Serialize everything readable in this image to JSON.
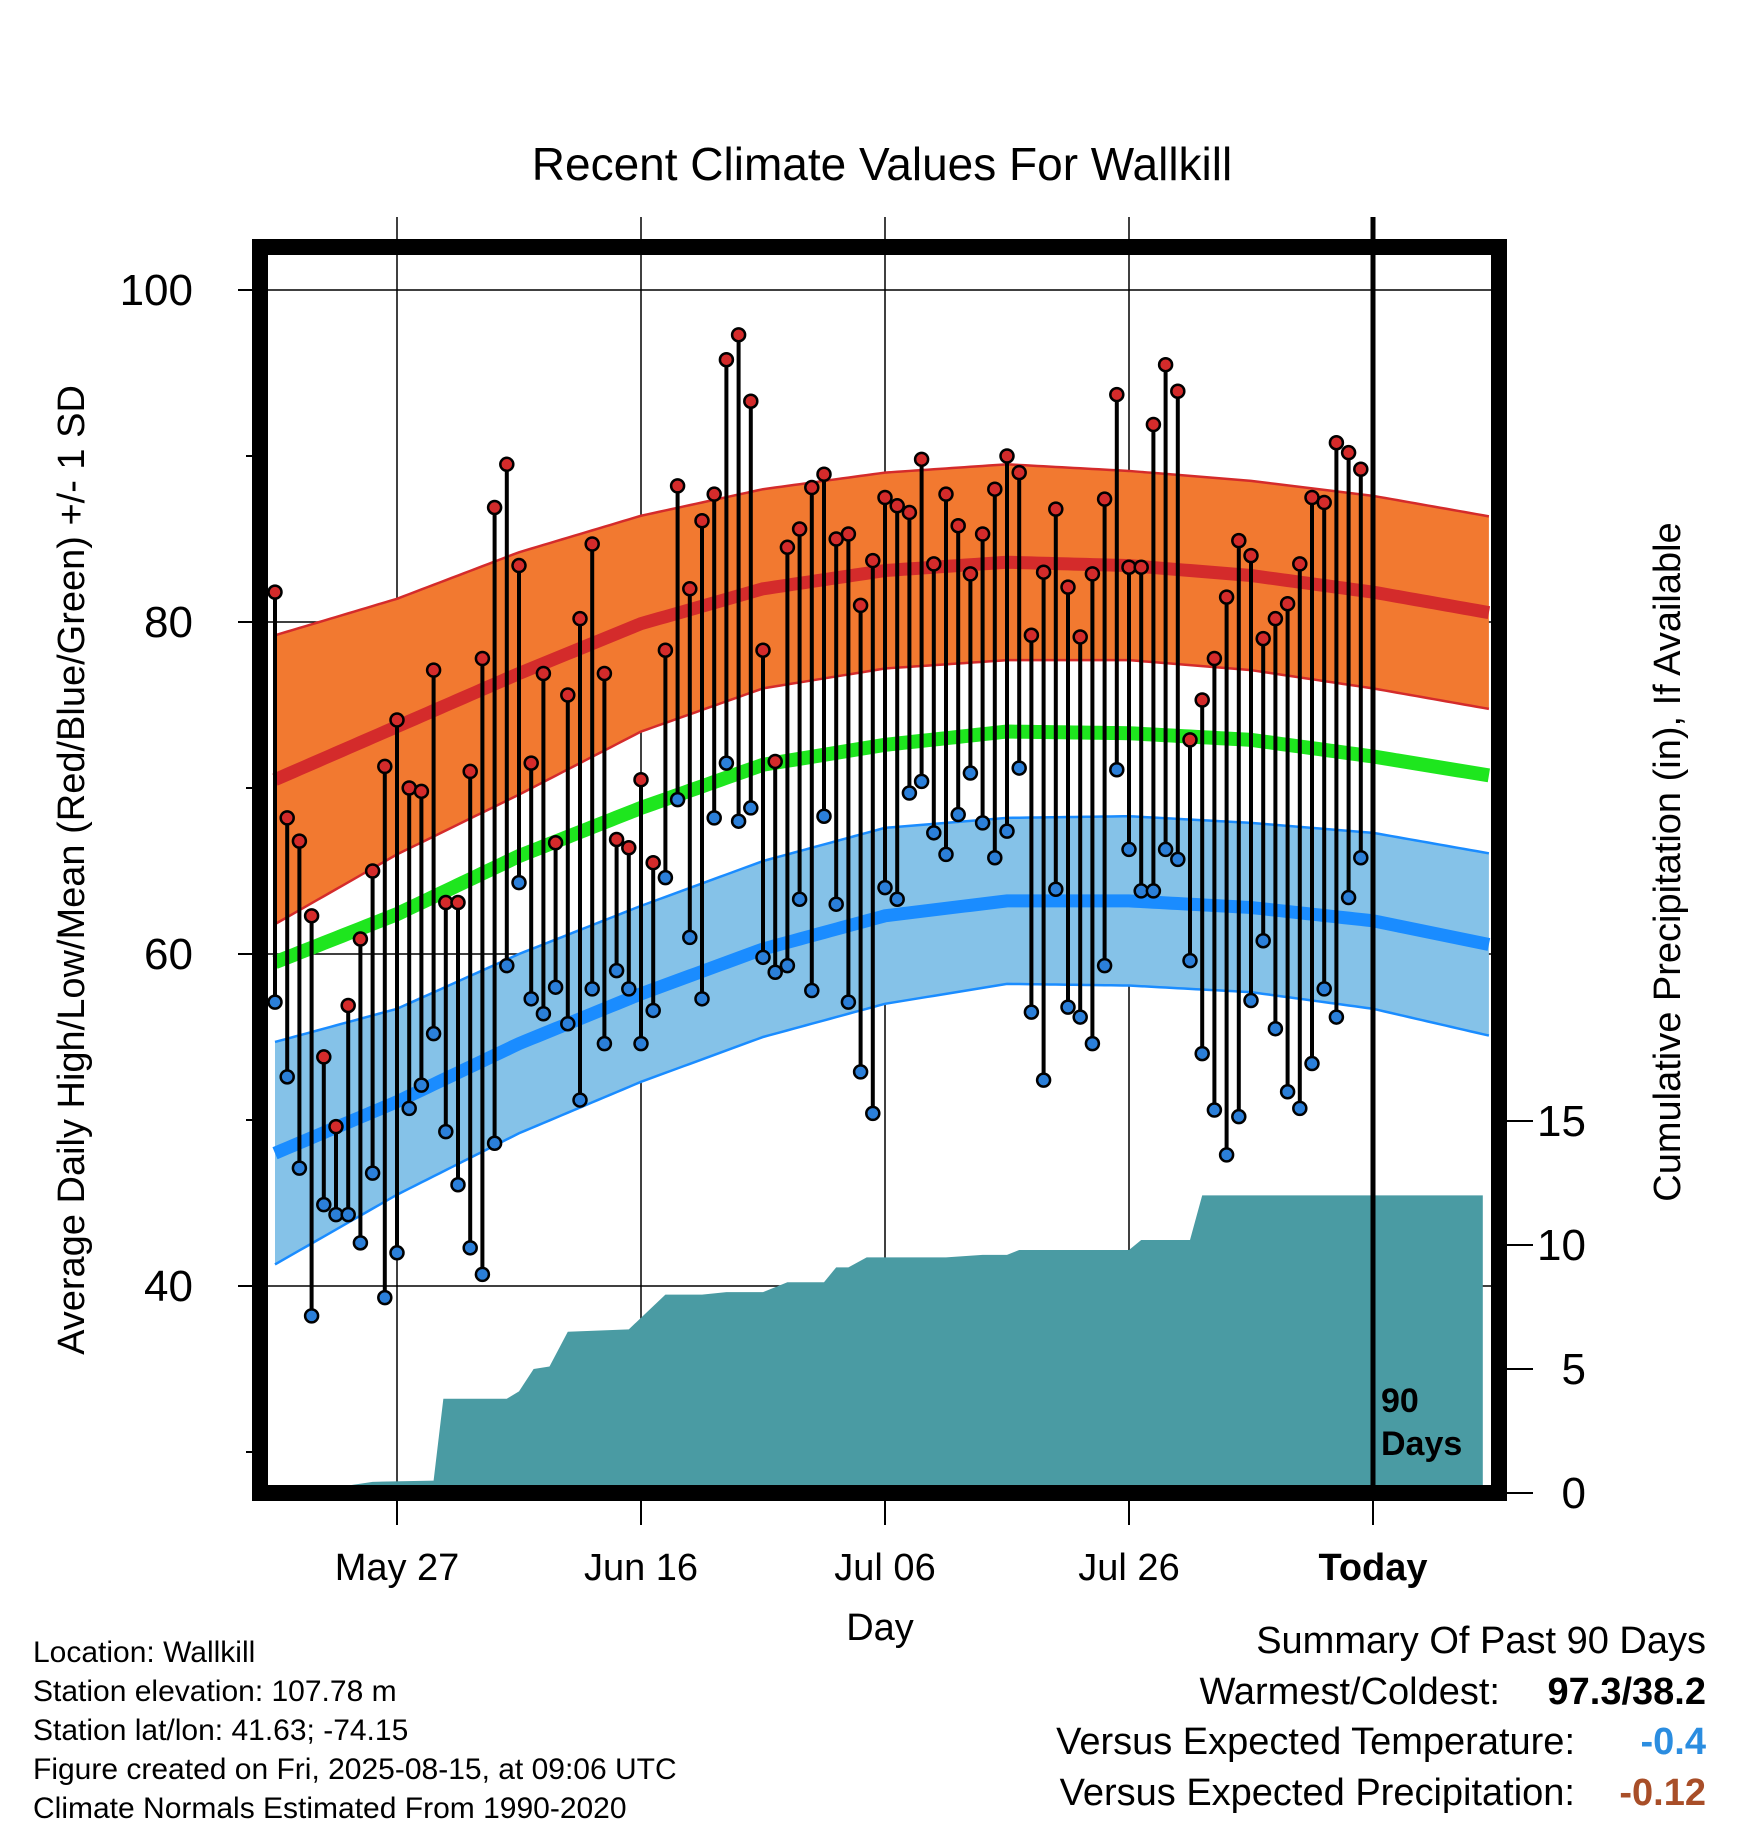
{
  "chart_data": {
    "type": "line",
    "title": "Recent Climate Values For Wallkill",
    "xlabel": "Day",
    "ylabel_left": "Average Daily High/Low/Mean (Red/Blue/Green) +/- 1 SD",
    "ylabel_right": "Cumulative Precipitation (in), If Available",
    "x_range": [
      -11,
      89
    ],
    "ylim_left": [
      29,
      104
    ],
    "ylim_right": [
      0,
      15
    ],
    "y_ticks_left": [
      40,
      60,
      80,
      100
    ],
    "y_ticks_right": [
      0,
      5,
      10,
      15
    ],
    "x_ticks": [
      {
        "day": 0,
        "label": "May 27"
      },
      {
        "day": 20,
        "label": "Jun 16"
      },
      {
        "day": 40,
        "label": "Jul 06"
      },
      {
        "day": 60,
        "label": "Jul 26"
      },
      {
        "day": 80,
        "label": "Today"
      }
    ],
    "today_marker": {
      "day": 80,
      "label_line1": "90",
      "label_line2": "Days"
    },
    "grid": true,
    "colors": {
      "high_band": "#f27930",
      "high_line": "#d42b2b",
      "low_band": "#85c2e8",
      "low_line": "#1a8cff",
      "mean_line": "#1ee61e",
      "precip": "#4a9ba3",
      "high_dot": "#d42b2b",
      "low_dot": "#2b7fd9",
      "warm_value": "#2b8de0",
      "precip_value": "#a84e28"
    },
    "normals": {
      "days": [
        -10,
        0,
        10,
        20,
        30,
        40,
        50,
        60,
        70,
        80,
        90
      ],
      "high": [
        70.5,
        73.7,
        76.9,
        79.9,
        82.0,
        83.1,
        83.6,
        83.4,
        82.8,
        81.8,
        80.5
      ],
      "high_sd": [
        8.7,
        7.7,
        7.3,
        6.5,
        6.0,
        5.9,
        5.9,
        5.7,
        5.7,
        5.8,
        5.8
      ],
      "low": [
        48.0,
        51.1,
        54.6,
        57.6,
        60.3,
        62.3,
        63.2,
        63.2,
        62.8,
        62.0,
        60.5
      ],
      "low_sd": [
        6.7,
        5.6,
        5.4,
        5.3,
        5.3,
        5.3,
        5.0,
        5.1,
        5.1,
        5.3,
        5.5
      ],
      "mean": [
        59.5,
        62.4,
        65.9,
        68.8,
        71.4,
        72.6,
        73.4,
        73.3,
        72.9,
        71.9,
        70.7
      ]
    },
    "daily": {
      "start_day": -10,
      "high": [
        81.8,
        68.2,
        66.8,
        62.3,
        53.8,
        49.6,
        56.9,
        60.9,
        65.0,
        71.3,
        74.1,
        70.0,
        69.8,
        77.1,
        63.1,
        63.1,
        71.0,
        77.8,
        86.9,
        89.5,
        83.4,
        71.5,
        76.9,
        66.7,
        75.6,
        80.2,
        84.7,
        76.9,
        66.9,
        66.4,
        70.5,
        65.5,
        78.3,
        88.2,
        82.0,
        86.1,
        87.7,
        95.8,
        97.3,
        93.3,
        78.3,
        71.6,
        84.5,
        85.6,
        88.1,
        88.9,
        85.0,
        85.3,
        81.0,
        83.7,
        87.5,
        87.0,
        86.6,
        89.8,
        83.5,
        87.7,
        85.8,
        82.9,
        85.3,
        88.0,
        90.0,
        89.0,
        79.2,
        83.0,
        86.8,
        82.1,
        79.1,
        82.9,
        87.4,
        93.7,
        83.3,
        83.3,
        91.9,
        95.5,
        93.9,
        72.9,
        75.3,
        77.8,
        81.5,
        84.9,
        84.0,
        79.0,
        80.2,
        81.1,
        83.5,
        87.5,
        87.2,
        90.8,
        90.2,
        89.2
      ],
      "low": [
        57.1,
        52.6,
        47.1,
        38.2,
        44.9,
        44.3,
        44.3,
        42.6,
        46.8,
        39.3,
        42.0,
        50.7,
        52.1,
        55.2,
        49.3,
        46.1,
        42.3,
        40.7,
        48.6,
        59.3,
        64.3,
        57.3,
        56.4,
        58.0,
        55.8,
        51.2,
        57.9,
        54.6,
        59.0,
        57.9,
        54.6,
        56.6,
        64.6,
        69.3,
        61.0,
        57.3,
        68.2,
        71.5,
        68.0,
        68.8,
        59.8,
        58.9,
        59.3,
        63.3,
        57.8,
        68.3,
        63.0,
        57.1,
        52.9,
        50.4,
        64.0,
        63.3,
        69.7,
        70.4,
        67.3,
        66.0,
        68.4,
        70.9,
        67.9,
        65.8,
        67.4,
        71.2,
        56.5,
        52.4,
        63.9,
        56.8,
        56.2,
        54.6,
        59.3,
        71.1,
        66.3,
        63.8,
        63.8,
        66.3,
        65.7,
        59.6,
        54.0,
        50.6,
        47.9,
        50.2,
        57.2,
        60.8,
        55.5,
        51.7,
        50.7,
        53.4,
        57.9,
        56.2,
        63.4,
        65.8
      ]
    },
    "precip_cumulative": [
      [
        -10,
        0.0
      ],
      [
        -5,
        0.0
      ],
      [
        -4,
        0.3
      ],
      [
        -2,
        0.45
      ],
      [
        3,
        0.5
      ],
      [
        3.8,
        3.8
      ],
      [
        9,
        3.8
      ],
      [
        10,
        4.1
      ],
      [
        11.2,
        5.0
      ],
      [
        12.5,
        5.1
      ],
      [
        14,
        6.5
      ],
      [
        19,
        6.6
      ],
      [
        20.5,
        7.3
      ],
      [
        22,
        8.0
      ],
      [
        25,
        8.0
      ],
      [
        27,
        8.1
      ],
      [
        30,
        8.1
      ],
      [
        32,
        8.5
      ],
      [
        35,
        8.5
      ],
      [
        36,
        9.1
      ],
      [
        37,
        9.1
      ],
      [
        38.5,
        9.5
      ],
      [
        45,
        9.5
      ],
      [
        48,
        9.6
      ],
      [
        50,
        9.6
      ],
      [
        51,
        9.8
      ],
      [
        60,
        9.8
      ],
      [
        61,
        10.2
      ],
      [
        65,
        10.2
      ],
      [
        66,
        12.0
      ],
      [
        89,
        12.0
      ]
    ]
  },
  "info": {
    "location": "Location: Wallkill",
    "elevation": "Station elevation: 107.78 m",
    "latlon": "Station lat/lon: 41.63; -74.15",
    "created": "Figure created on Fri, 2025-08-15, at 09:06 UTC",
    "normals": "Climate Normals Estimated From 1990-2020"
  },
  "summary": {
    "heading": "Summary Of Past 90 Days",
    "warm_cold_label": "Warmest/Coldest:",
    "warm_cold_value": "97.3/38.2",
    "temp_label": "Versus Expected Temperature:",
    "temp_value": "-0.4",
    "precip_label": "Versus Expected Precipitation:",
    "precip_value": "-0.12"
  }
}
